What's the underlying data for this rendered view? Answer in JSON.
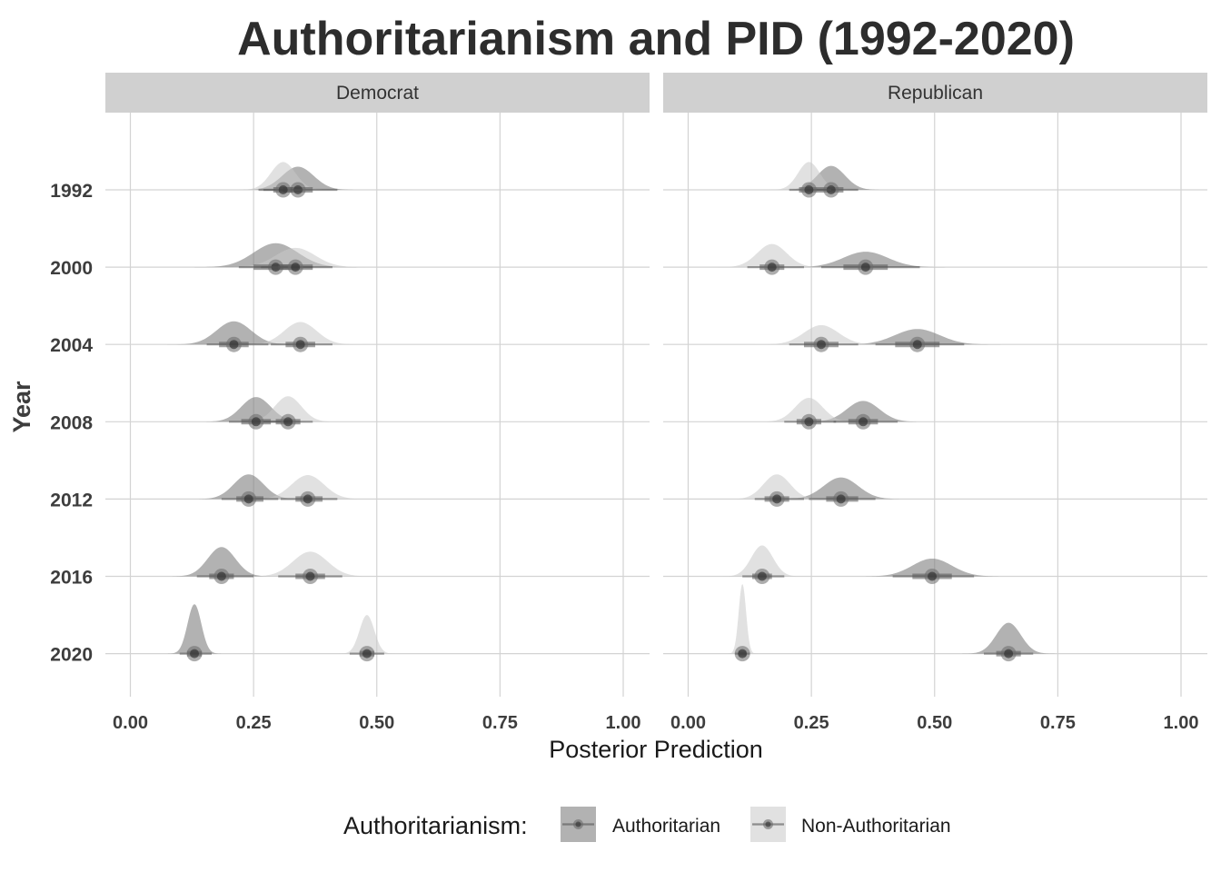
{
  "chart_data": {
    "type": "density-interval",
    "title": "Authoritarianism and PID (1992-2020)",
    "xlabel": "Posterior Prediction",
    "ylabel": "Year",
    "xlim": [
      0,
      1
    ],
    "x_ticks": [
      "0.00",
      "0.25",
      "0.50",
      "0.75",
      "1.00"
    ],
    "years": [
      "1992",
      "2000",
      "2004",
      "2008",
      "2012",
      "2016",
      "2020"
    ],
    "legend": {
      "title": "Authoritarianism:",
      "position": "bottom",
      "entries": [
        {
          "key": "auth",
          "label": "Authoritarian",
          "color": "#7f7f7f",
          "opacity": 0.6
        },
        {
          "key": "nonauth",
          "label": "Non-Authoritarian",
          "color": "#c8c8c8",
          "opacity": 0.55
        }
      ]
    },
    "panels": [
      {
        "name": "Democrat",
        "series": {
          "auth": [
            {
              "year": "1992",
              "median": 0.34,
              "q66": [
                0.31,
                0.37
              ],
              "q95": [
                0.26,
                0.42
              ],
              "sd": 0.032,
              "height": 0.3
            },
            {
              "year": "2000",
              "median": 0.295,
              "q66": [
                0.25,
                0.34
              ],
              "q95": [
                0.22,
                0.37
              ],
              "sd": 0.045,
              "height": 0.31
            },
            {
              "year": "2004",
              "median": 0.21,
              "q66": [
                0.18,
                0.24
              ],
              "q95": [
                0.155,
                0.28
              ],
              "sd": 0.035,
              "height": 0.3
            },
            {
              "year": "2008",
              "median": 0.255,
              "q66": [
                0.225,
                0.285
              ],
              "q95": [
                0.2,
                0.32
              ],
              "sd": 0.03,
              "height": 0.32
            },
            {
              "year": "2012",
              "median": 0.24,
              "q66": [
                0.215,
                0.27
              ],
              "q95": [
                0.185,
                0.3
              ],
              "sd": 0.03,
              "height": 0.32
            },
            {
              "year": "2016",
              "median": 0.185,
              "q66": [
                0.16,
                0.21
              ],
              "q95": [
                0.135,
                0.25
              ],
              "sd": 0.028,
              "height": 0.38
            },
            {
              "year": "2020",
              "median": 0.13,
              "q66": [
                0.115,
                0.145
              ],
              "q95": [
                0.1,
                0.165
              ],
              "sd": 0.014,
              "height": 0.64
            }
          ],
          "nonauth": [
            {
              "year": "1992",
              "median": 0.31,
              "q66": [
                0.29,
                0.33
              ],
              "q95": [
                0.27,
                0.35
              ],
              "sd": 0.025,
              "height": 0.36
            },
            {
              "year": "2000",
              "median": 0.335,
              "q66": [
                0.3,
                0.37
              ],
              "q95": [
                0.265,
                0.41
              ],
              "sd": 0.04,
              "height": 0.25
            },
            {
              "year": "2004",
              "median": 0.345,
              "q66": [
                0.315,
                0.375
              ],
              "q95": [
                0.285,
                0.41
              ],
              "sd": 0.033,
              "height": 0.29
            },
            {
              "year": "2008",
              "median": 0.32,
              "q66": [
                0.295,
                0.345
              ],
              "q95": [
                0.27,
                0.37
              ],
              "sd": 0.027,
              "height": 0.33
            },
            {
              "year": "2012",
              "median": 0.36,
              "q66": [
                0.335,
                0.39
              ],
              "q95": [
                0.305,
                0.42
              ],
              "sd": 0.033,
              "height": 0.31
            },
            {
              "year": "2016",
              "median": 0.365,
              "q66": [
                0.335,
                0.395
              ],
              "q95": [
                0.3,
                0.43
              ],
              "sd": 0.035,
              "height": 0.32
            },
            {
              "year": "2020",
              "median": 0.48,
              "q66": [
                0.465,
                0.495
              ],
              "q95": [
                0.445,
                0.515
              ],
              "sd": 0.015,
              "height": 0.5
            }
          ]
        }
      },
      {
        "name": "Republican",
        "series": {
          "auth": [
            {
              "year": "1992",
              "median": 0.29,
              "q66": [
                0.265,
                0.315
              ],
              "q95": [
                0.24,
                0.345
              ],
              "sd": 0.028,
              "height": 0.31
            },
            {
              "year": "2000",
              "median": 0.36,
              "q66": [
                0.315,
                0.405
              ],
              "q95": [
                0.27,
                0.47
              ],
              "sd": 0.045,
              "height": 0.2
            },
            {
              "year": "2004",
              "median": 0.465,
              "q66": [
                0.42,
                0.51
              ],
              "q95": [
                0.38,
                0.56
              ],
              "sd": 0.045,
              "height": 0.2
            },
            {
              "year": "2008",
              "median": 0.355,
              "q66": [
                0.325,
                0.385
              ],
              "q95": [
                0.295,
                0.425
              ],
              "sd": 0.033,
              "height": 0.27
            },
            {
              "year": "2012",
              "median": 0.31,
              "q66": [
                0.28,
                0.345
              ],
              "q95": [
                0.245,
                0.38
              ],
              "sd": 0.035,
              "height": 0.28
            },
            {
              "year": "2016",
              "median": 0.495,
              "q66": [
                0.455,
                0.535
              ],
              "q95": [
                0.415,
                0.58
              ],
              "sd": 0.04,
              "height": 0.23
            },
            {
              "year": "2020",
              "median": 0.65,
              "q66": [
                0.625,
                0.675
              ],
              "q95": [
                0.6,
                0.7
              ],
              "sd": 0.025,
              "height": 0.4
            }
          ],
          "nonauth": [
            {
              "year": "1992",
              "median": 0.245,
              "q66": [
                0.225,
                0.265
              ],
              "q95": [
                0.205,
                0.29
              ],
              "sd": 0.022,
              "height": 0.36
            },
            {
              "year": "2000",
              "median": 0.17,
              "q66": [
                0.145,
                0.195
              ],
              "q95": [
                0.12,
                0.235
              ],
              "sd": 0.03,
              "height": 0.3
            },
            {
              "year": "2004",
              "median": 0.27,
              "q66": [
                0.235,
                0.305
              ],
              "q95": [
                0.205,
                0.345
              ],
              "sd": 0.035,
              "height": 0.25
            },
            {
              "year": "2008",
              "median": 0.245,
              "q66": [
                0.22,
                0.27
              ],
              "q95": [
                0.195,
                0.3
              ],
              "sd": 0.028,
              "height": 0.31
            },
            {
              "year": "2012",
              "median": 0.18,
              "q66": [
                0.155,
                0.205
              ],
              "q95": [
                0.135,
                0.235
              ],
              "sd": 0.027,
              "height": 0.32
            },
            {
              "year": "2016",
              "median": 0.15,
              "q66": [
                0.13,
                0.17
              ],
              "q95": [
                0.11,
                0.195
              ],
              "sd": 0.022,
              "height": 0.4
            },
            {
              "year": "2020",
              "median": 0.11,
              "q66": [
                0.102,
                0.118
              ],
              "q95": [
                0.095,
                0.125
              ],
              "sd": 0.0075,
              "height": 0.9
            }
          ]
        }
      }
    ]
  }
}
